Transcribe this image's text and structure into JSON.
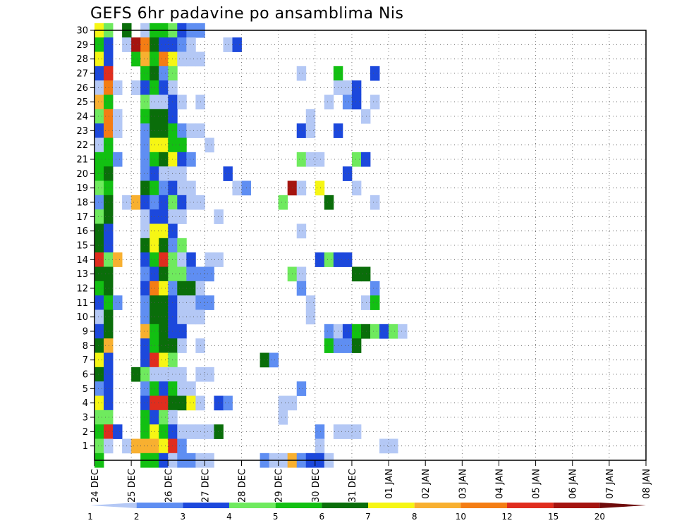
{
  "chart_data": {
    "type": "heatmap",
    "title": "GEFS 6hr padavine po ansamblima Nis",
    "xlabel": "",
    "ylabel": "",
    "y_ticks": [
      1,
      2,
      3,
      4,
      5,
      6,
      7,
      8,
      9,
      10,
      11,
      12,
      13,
      14,
      15,
      16,
      17,
      18,
      19,
      20,
      21,
      22,
      23,
      24,
      25,
      26,
      27,
      28,
      29,
      30
    ],
    "y_range": [
      0,
      30
    ],
    "x_ticks": [
      "24 DEC",
      "25 DEC",
      "26 DEC",
      "27 DEC",
      "28 DEC",
      "29 DEC",
      "30 DEC",
      "31 DEC",
      "01 JAN",
      "02 JAN",
      "03 JAN",
      "04 JAN",
      "05 JAN",
      "06 JAN",
      "07 JAN",
      "08 JAN"
    ],
    "x_range_days": [
      0,
      15
    ],
    "steps_per_day": 4,
    "grid": true,
    "legend": {
      "placement": "bottom",
      "labels": [
        "1",
        "2",
        "3",
        "4",
        "5",
        "6",
        "7",
        "8",
        "10",
        "12",
        "15",
        "20"
      ],
      "colors": [
        "#b4c8f5",
        "#5f8ef2",
        "#1c48dc",
        "#6fea5e",
        "#12c012",
        "#0a6e0a",
        "#f6f614",
        "#f8b030",
        "#f47d14",
        "#e02d1e",
        "#a51410",
        "#6e0a0a"
      ]
    },
    "cells": [
      [
        0,
        30,
        6
      ],
      [
        1,
        30,
        3
      ],
      [
        3,
        30,
        5
      ],
      [
        5,
        30,
        0
      ],
      [
        6,
        30,
        4
      ],
      [
        7,
        30,
        4
      ],
      [
        8,
        30,
        3
      ],
      [
        9,
        30,
        2
      ],
      [
        10,
        30,
        1
      ],
      [
        11,
        30,
        1
      ],
      [
        0,
        29,
        4
      ],
      [
        1,
        29,
        2
      ],
      [
        3,
        29,
        0
      ],
      [
        4,
        29,
        10
      ],
      [
        5,
        29,
        8
      ],
      [
        6,
        29,
        5
      ],
      [
        7,
        29,
        2
      ],
      [
        8,
        29,
        2
      ],
      [
        9,
        29,
        1
      ],
      [
        10,
        29,
        0
      ],
      [
        14,
        29,
        0
      ],
      [
        15,
        29,
        2
      ],
      [
        0,
        28,
        6
      ],
      [
        1,
        28,
        2
      ],
      [
        4,
        28,
        4
      ],
      [
        5,
        28,
        7
      ],
      [
        6,
        28,
        4
      ],
      [
        7,
        28,
        8
      ],
      [
        8,
        28,
        6
      ],
      [
        9,
        28,
        0
      ],
      [
        10,
        28,
        0
      ],
      [
        11,
        28,
        0
      ],
      [
        0,
        27,
        2
      ],
      [
        1,
        27,
        9
      ],
      [
        5,
        27,
        4
      ],
      [
        6,
        27,
        5
      ],
      [
        7,
        27,
        1
      ],
      [
        8,
        27,
        3
      ],
      [
        22,
        27,
        0
      ],
      [
        26,
        27,
        4
      ],
      [
        30,
        27,
        2
      ],
      [
        0,
        26,
        0
      ],
      [
        1,
        26,
        8
      ],
      [
        2,
        26,
        0
      ],
      [
        4,
        26,
        0
      ],
      [
        5,
        26,
        2
      ],
      [
        6,
        26,
        4
      ],
      [
        7,
        26,
        2
      ],
      [
        8,
        26,
        0
      ],
      [
        26,
        26,
        0
      ],
      [
        27,
        26,
        0
      ],
      [
        28,
        26,
        2
      ],
      [
        0,
        25,
        7
      ],
      [
        1,
        25,
        4
      ],
      [
        5,
        25,
        3
      ],
      [
        6,
        25,
        0
      ],
      [
        7,
        25,
        0
      ],
      [
        8,
        25,
        2
      ],
      [
        9,
        25,
        0
      ],
      [
        11,
        25,
        0
      ],
      [
        25,
        25,
        0
      ],
      [
        27,
        25,
        1
      ],
      [
        28,
        25,
        2
      ],
      [
        30,
        25,
        0
      ],
      [
        0,
        24,
        3
      ],
      [
        1,
        24,
        8
      ],
      [
        2,
        24,
        0
      ],
      [
        5,
        24,
        4
      ],
      [
        6,
        24,
        5
      ],
      [
        7,
        24,
        5
      ],
      [
        8,
        24,
        2
      ],
      [
        23,
        24,
        0
      ],
      [
        29,
        24,
        0
      ],
      [
        0,
        23,
        2
      ],
      [
        1,
        23,
        8
      ],
      [
        2,
        23,
        0
      ],
      [
        5,
        23,
        1
      ],
      [
        6,
        23,
        5
      ],
      [
        7,
        23,
        5
      ],
      [
        8,
        23,
        4
      ],
      [
        9,
        23,
        1
      ],
      [
        10,
        23,
        0
      ],
      [
        11,
        23,
        0
      ],
      [
        22,
        23,
        2
      ],
      [
        23,
        23,
        0
      ],
      [
        26,
        23,
        2
      ],
      [
        0,
        22,
        0
      ],
      [
        1,
        22,
        4
      ],
      [
        5,
        22,
        1
      ],
      [
        6,
        22,
        6
      ],
      [
        7,
        22,
        6
      ],
      [
        8,
        22,
        4
      ],
      [
        9,
        22,
        4
      ],
      [
        12,
        22,
        0
      ],
      [
        0,
        21,
        4
      ],
      [
        1,
        21,
        4
      ],
      [
        2,
        21,
        1
      ],
      [
        5,
        21,
        1
      ],
      [
        6,
        21,
        4
      ],
      [
        7,
        21,
        5
      ],
      [
        8,
        21,
        6
      ],
      [
        9,
        21,
        2
      ],
      [
        10,
        21,
        1
      ],
      [
        22,
        21,
        3
      ],
      [
        23,
        21,
        0
      ],
      [
        24,
        21,
        0
      ],
      [
        28,
        21,
        3
      ],
      [
        29,
        21,
        2
      ],
      [
        0,
        20,
        4
      ],
      [
        1,
        20,
        5
      ],
      [
        5,
        20,
        1
      ],
      [
        6,
        20,
        2
      ],
      [
        7,
        20,
        0
      ],
      [
        8,
        20,
        0
      ],
      [
        9,
        20,
        0
      ],
      [
        14,
        20,
        2
      ],
      [
        27,
        20,
        2
      ],
      [
        0,
        19,
        3
      ],
      [
        1,
        19,
        4
      ],
      [
        5,
        19,
        5
      ],
      [
        6,
        19,
        4
      ],
      [
        7,
        19,
        1
      ],
      [
        8,
        19,
        2
      ],
      [
        9,
        19,
        0
      ],
      [
        10,
        19,
        0
      ],
      [
        15,
        19,
        0
      ],
      [
        16,
        19,
        1
      ],
      [
        21,
        19,
        10
      ],
      [
        22,
        19,
        0
      ],
      [
        24,
        19,
        6
      ],
      [
        28,
        19,
        0
      ],
      [
        0,
        18,
        1
      ],
      [
        1,
        18,
        5
      ],
      [
        3,
        18,
        0
      ],
      [
        4,
        18,
        7
      ],
      [
        5,
        18,
        2
      ],
      [
        6,
        18,
        1
      ],
      [
        7,
        18,
        2
      ],
      [
        8,
        18,
        3
      ],
      [
        9,
        18,
        2
      ],
      [
        10,
        18,
        0
      ],
      [
        11,
        18,
        0
      ],
      [
        20,
        18,
        3
      ],
      [
        25,
        18,
        5
      ],
      [
        30,
        18,
        0
      ],
      [
        0,
        17,
        3
      ],
      [
        1,
        17,
        5
      ],
      [
        5,
        17,
        0
      ],
      [
        6,
        17,
        2
      ],
      [
        7,
        17,
        2
      ],
      [
        8,
        17,
        0
      ],
      [
        9,
        17,
        0
      ],
      [
        13,
        17,
        0
      ],
      [
        0,
        16,
        5
      ],
      [
        1,
        16,
        2
      ],
      [
        5,
        16,
        0
      ],
      [
        6,
        16,
        6
      ],
      [
        7,
        16,
        6
      ],
      [
        8,
        16,
        2
      ],
      [
        22,
        16,
        0
      ],
      [
        0,
        15,
        5
      ],
      [
        1,
        15,
        2
      ],
      [
        5,
        15,
        5
      ],
      [
        6,
        15,
        6
      ],
      [
        7,
        15,
        5
      ],
      [
        8,
        15,
        1
      ],
      [
        9,
        15,
        3
      ],
      [
        0,
        14,
        9
      ],
      [
        1,
        14,
        3
      ],
      [
        2,
        14,
        7
      ],
      [
        5,
        14,
        2
      ],
      [
        6,
        14,
        4
      ],
      [
        7,
        14,
        9
      ],
      [
        8,
        14,
        3
      ],
      [
        9,
        14,
        0
      ],
      [
        10,
        14,
        2
      ],
      [
        12,
        14,
        0
      ],
      [
        13,
        14,
        0
      ],
      [
        24,
        14,
        2
      ],
      [
        25,
        14,
        3
      ],
      [
        26,
        14,
        2
      ],
      [
        27,
        14,
        2
      ],
      [
        0,
        13,
        5
      ],
      [
        1,
        13,
        5
      ],
      [
        5,
        13,
        1
      ],
      [
        6,
        13,
        2
      ],
      [
        7,
        13,
        5
      ],
      [
        8,
        13,
        3
      ],
      [
        9,
        13,
        3
      ],
      [
        10,
        13,
        1
      ],
      [
        11,
        13,
        1
      ],
      [
        12,
        13,
        1
      ],
      [
        21,
        13,
        3
      ],
      [
        22,
        13,
        0
      ],
      [
        28,
        13,
        5
      ],
      [
        29,
        13,
        5
      ],
      [
        0,
        12,
        4
      ],
      [
        1,
        12,
        5
      ],
      [
        5,
        12,
        2
      ],
      [
        6,
        12,
        8
      ],
      [
        7,
        12,
        6
      ],
      [
        8,
        12,
        1
      ],
      [
        9,
        12,
        5
      ],
      [
        10,
        12,
        5
      ],
      [
        11,
        12,
        0
      ],
      [
        22,
        12,
        1
      ],
      [
        30,
        12,
        1
      ],
      [
        0,
        11,
        2
      ],
      [
        1,
        11,
        4
      ],
      [
        2,
        11,
        1
      ],
      [
        5,
        11,
        1
      ],
      [
        6,
        11,
        5
      ],
      [
        7,
        11,
        5
      ],
      [
        8,
        11,
        2
      ],
      [
        9,
        11,
        0
      ],
      [
        10,
        11,
        0
      ],
      [
        11,
        11,
        1
      ],
      [
        12,
        11,
        1
      ],
      [
        23,
        11,
        0
      ],
      [
        29,
        11,
        0
      ],
      [
        30,
        11,
        4
      ],
      [
        0,
        10,
        0
      ],
      [
        1,
        10,
        5
      ],
      [
        5,
        10,
        1
      ],
      [
        6,
        10,
        5
      ],
      [
        7,
        10,
        5
      ],
      [
        8,
        10,
        2
      ],
      [
        9,
        10,
        0
      ],
      [
        10,
        10,
        0
      ],
      [
        11,
        10,
        0
      ],
      [
        23,
        10,
        0
      ],
      [
        0,
        9,
        2
      ],
      [
        1,
        9,
        5
      ],
      [
        5,
        9,
        7
      ],
      [
        6,
        9,
        4
      ],
      [
        7,
        9,
        5
      ],
      [
        8,
        9,
        2
      ],
      [
        9,
        9,
        2
      ],
      [
        25,
        9,
        1
      ],
      [
        26,
        9,
        0
      ],
      [
        27,
        9,
        2
      ],
      [
        28,
        9,
        4
      ],
      [
        29,
        9,
        5
      ],
      [
        30,
        9,
        3
      ],
      [
        31,
        9,
        2
      ],
      [
        32,
        9,
        3
      ],
      [
        33,
        9,
        0
      ],
      [
        0,
        8,
        5
      ],
      [
        1,
        8,
        7
      ],
      [
        5,
        8,
        2
      ],
      [
        6,
        8,
        4
      ],
      [
        7,
        8,
        5
      ],
      [
        8,
        8,
        5
      ],
      [
        9,
        8,
        0
      ],
      [
        11,
        8,
        0
      ],
      [
        25,
        8,
        4
      ],
      [
        26,
        8,
        1
      ],
      [
        27,
        8,
        1
      ],
      [
        28,
        8,
        5
      ],
      [
        0,
        7,
        6
      ],
      [
        1,
        7,
        2
      ],
      [
        5,
        7,
        2
      ],
      [
        6,
        7,
        9
      ],
      [
        7,
        7,
        6
      ],
      [
        8,
        7,
        3
      ],
      [
        18,
        7,
        5
      ],
      [
        19,
        7,
        1
      ],
      [
        0,
        6,
        5
      ],
      [
        1,
        6,
        2
      ],
      [
        4,
        6,
        5
      ],
      [
        5,
        6,
        3
      ],
      [
        6,
        6,
        0
      ],
      [
        7,
        6,
        0
      ],
      [
        8,
        6,
        0
      ],
      [
        9,
        6,
        0
      ],
      [
        11,
        6,
        0
      ],
      [
        12,
        6,
        0
      ],
      [
        0,
        5,
        1
      ],
      [
        1,
        5,
        2
      ],
      [
        5,
        5,
        1
      ],
      [
        6,
        5,
        4
      ],
      [
        7,
        5,
        2
      ],
      [
        8,
        5,
        4
      ],
      [
        9,
        5,
        0
      ],
      [
        10,
        5,
        0
      ],
      [
        22,
        5,
        1
      ],
      [
        0,
        4,
        6
      ],
      [
        1,
        4,
        2
      ],
      [
        5,
        4,
        2
      ],
      [
        6,
        4,
        9
      ],
      [
        7,
        4,
        9
      ],
      [
        8,
        4,
        5
      ],
      [
        9,
        4,
        5
      ],
      [
        10,
        4,
        6
      ],
      [
        11,
        4,
        0
      ],
      [
        13,
        4,
        2
      ],
      [
        14,
        4,
        1
      ],
      [
        20,
        4,
        0
      ],
      [
        21,
        4,
        0
      ],
      [
        0,
        3,
        3
      ],
      [
        1,
        3,
        3
      ],
      [
        5,
        3,
        4
      ],
      [
        6,
        3,
        2
      ],
      [
        7,
        3,
        3
      ],
      [
        8,
        3,
        0
      ],
      [
        20,
        3,
        0
      ],
      [
        0,
        2,
        4
      ],
      [
        1,
        2,
        9
      ],
      [
        2,
        2,
        2
      ],
      [
        5,
        2,
        4
      ],
      [
        6,
        2,
        6
      ],
      [
        7,
        2,
        4
      ],
      [
        8,
        2,
        2
      ],
      [
        9,
        2,
        0
      ],
      [
        10,
        2,
        0
      ],
      [
        11,
        2,
        0
      ],
      [
        12,
        2,
        0
      ],
      [
        13,
        2,
        5
      ],
      [
        24,
        2,
        1
      ],
      [
        26,
        2,
        0
      ],
      [
        27,
        2,
        0
      ],
      [
        28,
        2,
        0
      ],
      [
        0,
        1,
        3
      ],
      [
        1,
        1,
        0
      ],
      [
        3,
        1,
        0
      ],
      [
        4,
        1,
        7
      ],
      [
        5,
        1,
        7
      ],
      [
        6,
        1,
        7
      ],
      [
        7,
        1,
        6
      ],
      [
        8,
        1,
        9
      ],
      [
        9,
        1,
        1
      ],
      [
        24,
        1,
        0
      ],
      [
        31,
        1,
        0
      ],
      [
        32,
        1,
        0
      ],
      [
        0,
        0,
        4
      ],
      [
        5,
        0,
        4
      ],
      [
        6,
        0,
        4
      ],
      [
        7,
        0,
        2
      ],
      [
        8,
        0,
        0
      ],
      [
        9,
        0,
        1
      ],
      [
        10,
        0,
        1
      ],
      [
        11,
        0,
        0
      ],
      [
        12,
        0,
        0
      ],
      [
        18,
        0,
        1
      ],
      [
        19,
        0,
        0
      ],
      [
        20,
        0,
        0
      ],
      [
        21,
        0,
        7
      ],
      [
        22,
        0,
        1
      ],
      [
        23,
        0,
        2
      ],
      [
        24,
        0,
        2
      ],
      [
        25,
        0,
        0
      ]
    ]
  }
}
